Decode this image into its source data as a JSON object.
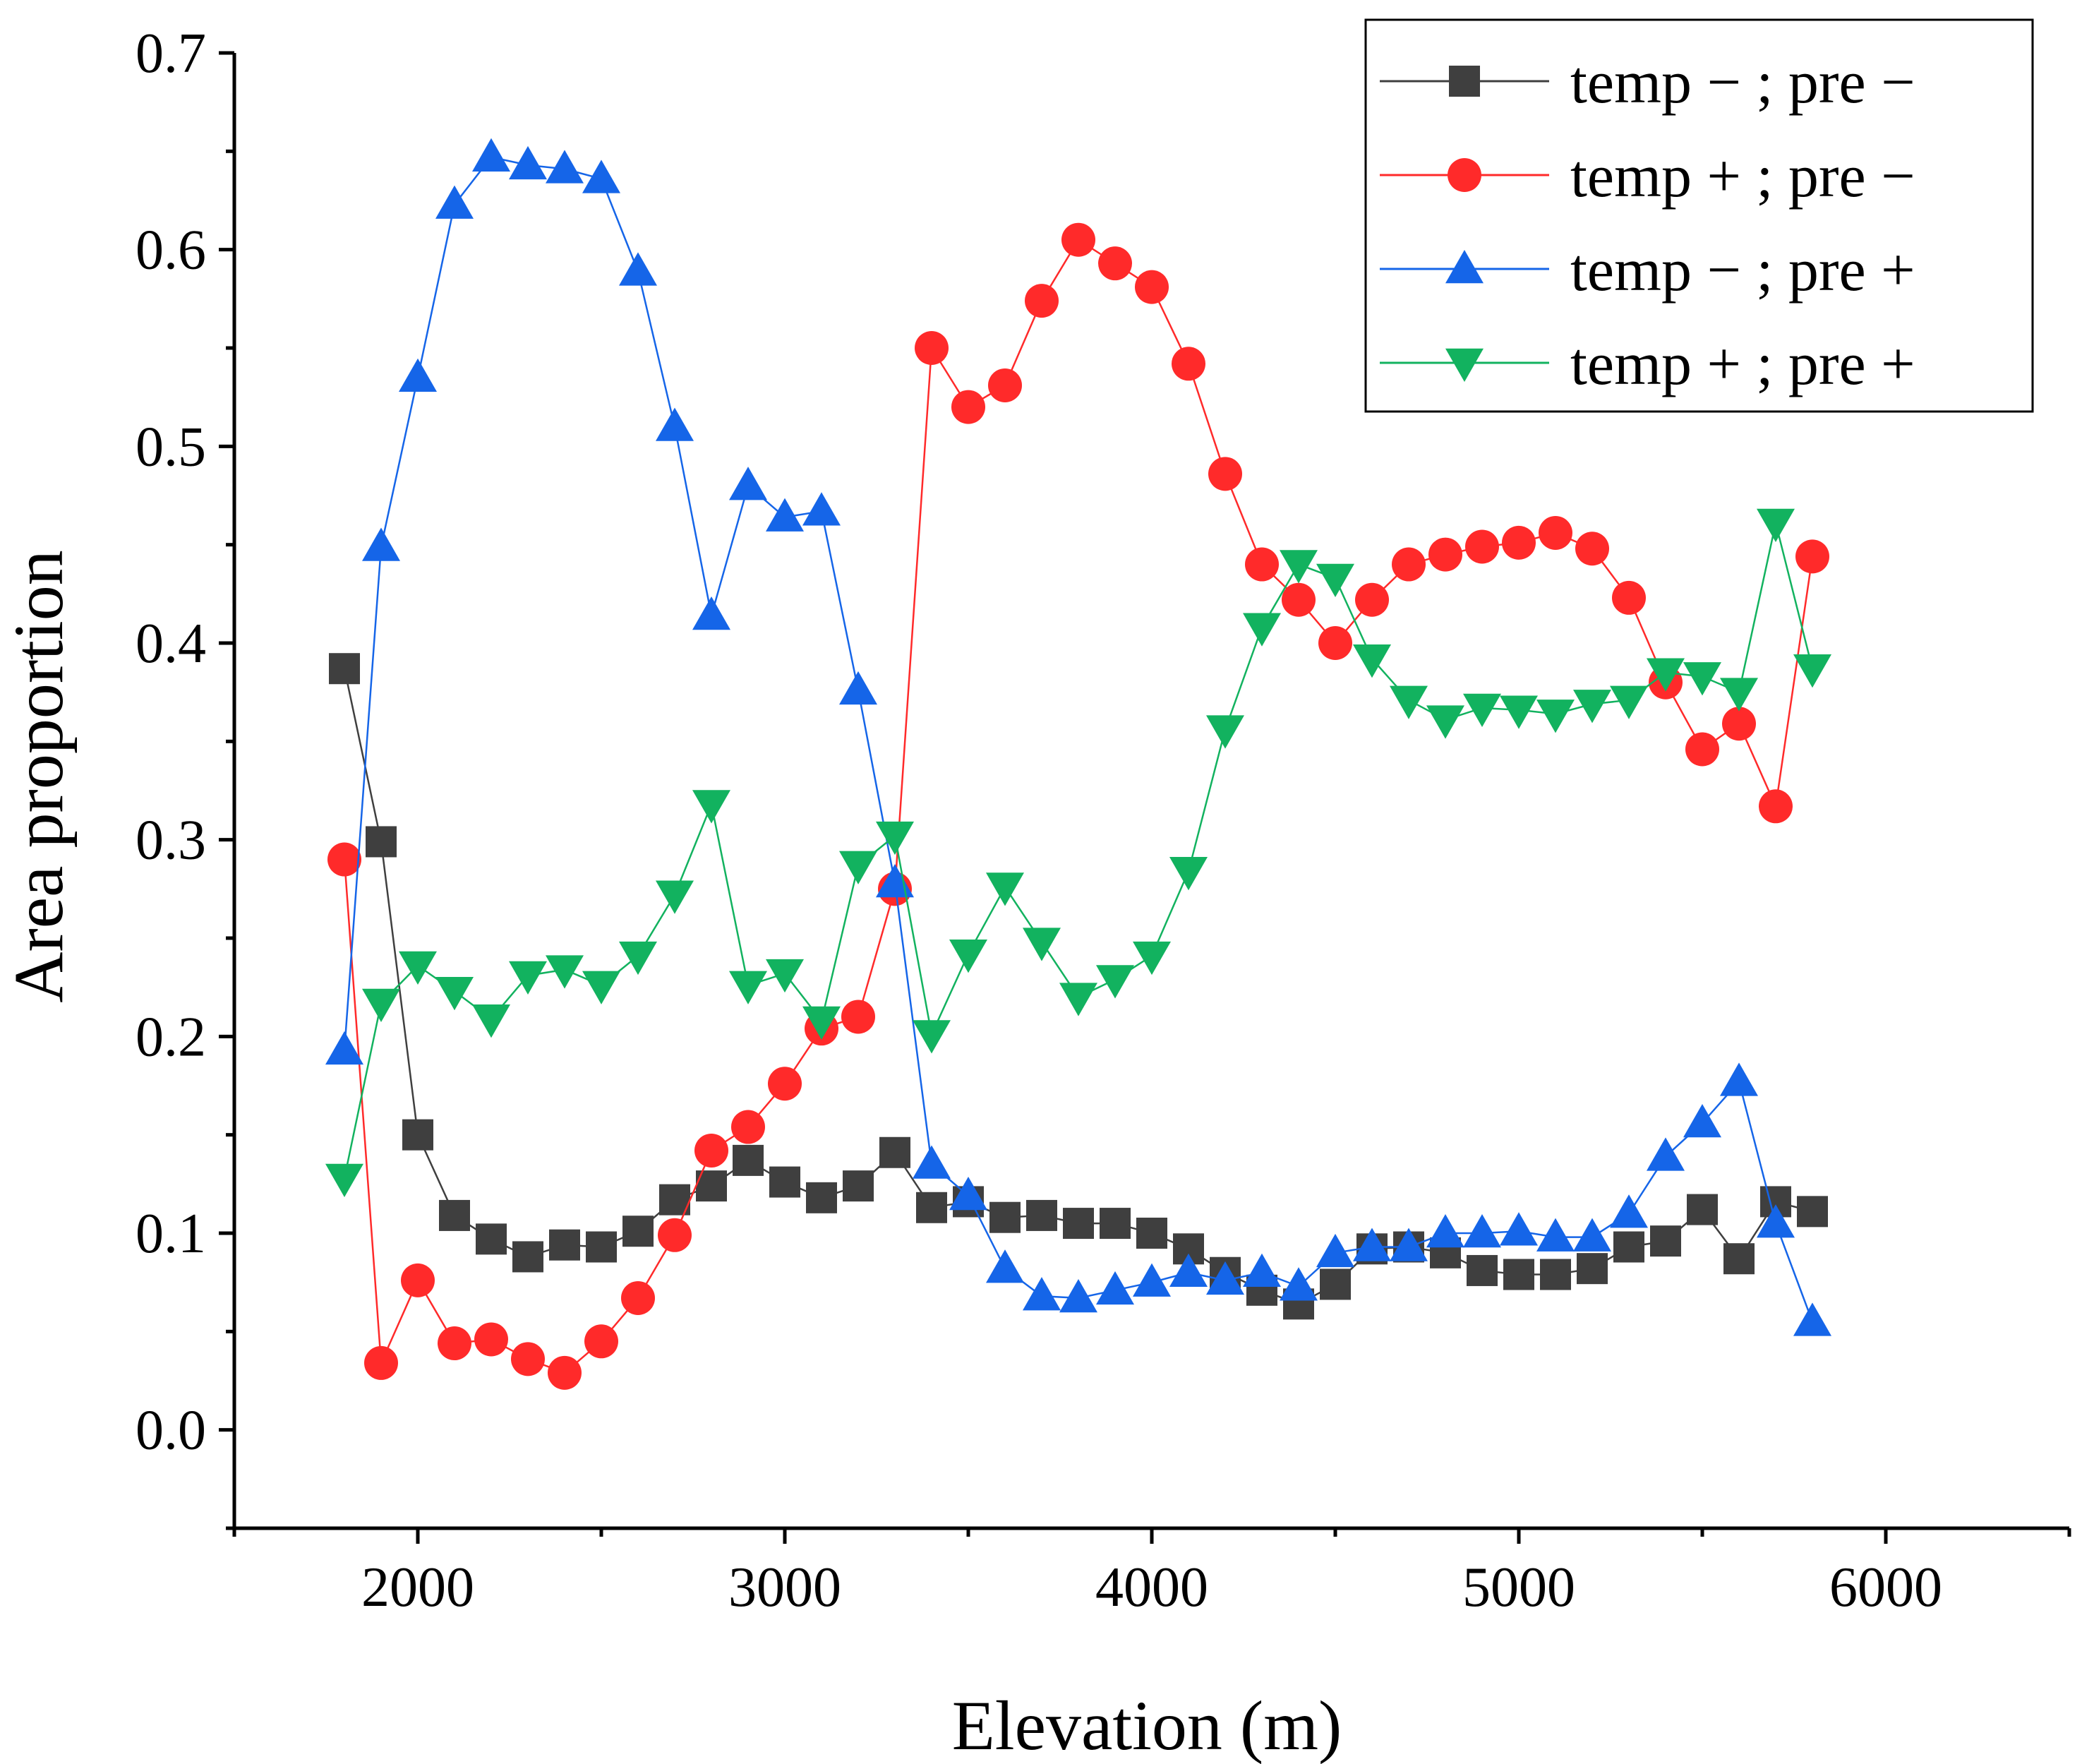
{
  "chart_data": {
    "type": "line",
    "title": "",
    "xlabel": "Elevation (m)",
    "ylabel": "Area proportion",
    "xlim": [
      1500,
      6500
    ],
    "ylim": [
      -0.05,
      0.7
    ],
    "xticks": [
      2000,
      3000,
      4000,
      5000,
      6000
    ],
    "xtick_labels": [
      "2000",
      "3000",
      "4000",
      "5000",
      "6000"
    ],
    "yticks": [
      0.0,
      0.1,
      0.2,
      0.3,
      0.4,
      0.5,
      0.6,
      0.7
    ],
    "ytick_labels": [
      "0.0",
      "0.1",
      "0.2",
      "0.3",
      "0.4",
      "0.5",
      "0.6",
      "0.7"
    ],
    "grid": false,
    "legend_position": "top-right",
    "x": [
      1800,
      1900,
      2000,
      2100,
      2200,
      2300,
      2400,
      2500,
      2600,
      2700,
      2800,
      2900,
      3000,
      3100,
      3200,
      3300,
      3400,
      3500,
      3600,
      3700,
      3800,
      3900,
      4000,
      4100,
      4200,
      4300,
      4400,
      4500,
      4600,
      4700,
      4800,
      4900,
      5000,
      5100,
      5200,
      5300,
      5400,
      5500,
      5600,
      5700,
      5800
    ],
    "series": [
      {
        "name": "temp－; pre－",
        "legend_label": "temp − ; pre −",
        "color": "#3f3f3f",
        "marker": "square",
        "values": [
          0.387,
          0.299,
          0.15,
          0.109,
          0.097,
          0.088,
          0.094,
          0.093,
          0.101,
          0.117,
          0.124,
          0.137,
          0.126,
          0.118,
          0.124,
          0.141,
          0.113,
          0.116,
          0.108,
          0.109,
          0.105,
          0.105,
          0.1,
          0.092,
          0.08,
          0.071,
          0.064,
          0.074,
          0.092,
          0.093,
          0.09,
          0.081,
          0.079,
          0.079,
          0.082,
          0.093,
          0.096,
          0.112,
          0.087,
          0.116,
          0.111
        ]
      },
      {
        "name": "temp＋; pre－",
        "legend_label": "temp + ; pre −",
        "color": "#ff2a2a",
        "marker": "circle",
        "values": [
          0.29,
          0.034,
          0.076,
          0.044,
          0.046,
          0.036,
          0.029,
          0.045,
          0.067,
          0.099,
          0.142,
          0.154,
          0.176,
          0.204,
          0.21,
          0.275,
          0.55,
          0.52,
          0.531,
          0.574,
          0.605,
          0.593,
          0.581,
          0.542,
          0.486,
          0.44,
          0.422,
          0.4,
          0.422,
          0.44,
          0.445,
          0.449,
          0.451,
          0.456,
          0.448,
          0.423,
          0.38,
          0.346,
          0.359,
          0.317,
          0.444
        ]
      },
      {
        "name": "temp－; pre＋",
        "legend_label": "temp − ; pre +",
        "color": "#1565e8",
        "marker": "triangle-up",
        "values": [
          0.193,
          0.449,
          0.535,
          0.623,
          0.647,
          0.643,
          0.641,
          0.636,
          0.589,
          0.51,
          0.414,
          0.48,
          0.464,
          0.467,
          0.376,
          0.278,
          0.135,
          0.119,
          0.082,
          0.068,
          0.067,
          0.071,
          0.075,
          0.08,
          0.076,
          0.08,
          0.073,
          0.09,
          0.093,
          0.093,
          0.1,
          0.1,
          0.101,
          0.098,
          0.098,
          0.11,
          0.139,
          0.156,
          0.177,
          0.105,
          0.055
        ]
      },
      {
        "name": "temp＋; pre＋",
        "legend_label": "temp + ; pre +",
        "color": "#12b25f",
        "marker": "triangle-down",
        "values": [
          0.128,
          0.217,
          0.236,
          0.223,
          0.209,
          0.231,
          0.234,
          0.226,
          0.241,
          0.272,
          0.318,
          0.226,
          0.232,
          0.208,
          0.287,
          0.302,
          0.201,
          0.242,
          0.276,
          0.248,
          0.22,
          0.229,
          0.241,
          0.284,
          0.356,
          0.408,
          0.44,
          0.433,
          0.392,
          0.371,
          0.361,
          0.367,
          0.366,
          0.364,
          0.369,
          0.371,
          0.385,
          0.383,
          0.375,
          0.461,
          0.387
        ]
      }
    ]
  }
}
